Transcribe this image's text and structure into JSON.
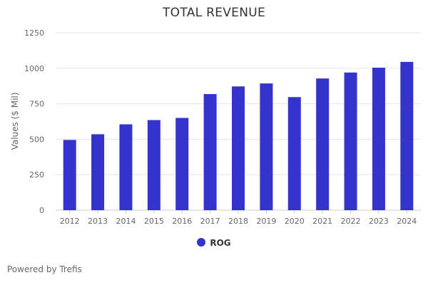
{
  "chart_data": {
    "type": "bar",
    "title": "TOTAL REVENUE",
    "ylabel": "Values ($ Mil)",
    "xlabel": "",
    "categories": [
      "2012",
      "2013",
      "2014",
      "2015",
      "2016",
      "2017",
      "2018",
      "2019",
      "2020",
      "2021",
      "2022",
      "2023",
      "2024"
    ],
    "series": [
      {
        "name": "ROG",
        "color": "#3434cc",
        "values": [
          495,
          535,
          605,
          635,
          650,
          818,
          872,
          893,
          797,
          928,
          970,
          1004,
          1045
        ]
      }
    ],
    "ylim": [
      0,
      1250
    ],
    "yticks": [
      0,
      250,
      500,
      750,
      1000,
      1250
    ],
    "grid": true,
    "legend_position": "bottom-center"
  },
  "credit": "Powered by Trefis"
}
